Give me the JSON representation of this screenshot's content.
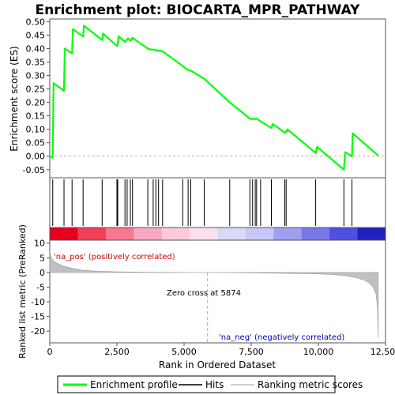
{
  "chart_data": {
    "type": "line",
    "title": "Enrichment plot: BIOCARTA_MPR_PATHWAY",
    "es_panel": {
      "ylabel": "Enrichment score (ES)",
      "ylim": [
        -0.08,
        0.51
      ],
      "yticks": [
        -0.05,
        0.0,
        0.05,
        0.1,
        0.15,
        0.2,
        0.25,
        0.3,
        0.35,
        0.4,
        0.45,
        0.5
      ],
      "ytick_labels": [
        "-0.05",
        "0.00",
        "0.05",
        "0.10",
        "0.15",
        "0.20",
        "0.25",
        "0.30",
        "0.35",
        "0.40",
        "0.45",
        "0.50"
      ],
      "series": [
        {
          "name": "Enrichment profile",
          "color": "#00ff00",
          "x": [
            0,
            110,
            140,
            530,
            560,
            830,
            860,
            1240,
            1270,
            1950,
            1980,
            2500,
            2530,
            2560,
            2800,
            2840,
            2880,
            2920,
            3000,
            3080,
            3150,
            3650,
            3700,
            3850,
            3950,
            4050,
            4100,
            4200,
            4950,
            5150,
            5250,
            5750,
            6700,
            7450,
            7550,
            7650,
            7700,
            7850,
            8250,
            8300,
            8750,
            8800,
            8850,
            9900,
            9950,
            10950,
            11000,
            11250,
            11280,
            12230
          ],
          "y": [
            0.0,
            -0.005,
            0.272,
            0.243,
            0.4,
            0.382,
            0.472,
            0.445,
            0.485,
            0.432,
            0.456,
            0.41,
            0.412,
            0.446,
            0.425,
            0.43,
            0.433,
            0.438,
            0.428,
            0.44,
            0.435,
            0.4,
            0.398,
            0.396,
            0.395,
            0.392,
            0.393,
            0.39,
            0.335,
            0.32,
            0.318,
            0.288,
            0.2,
            0.14,
            0.138,
            0.138,
            0.14,
            0.13,
            0.105,
            0.12,
            0.088,
            0.09,
            0.1,
            0.012,
            0.035,
            -0.05,
            0.015,
            0.0,
            0.085,
            0.002
          ]
        }
      ]
    },
    "hits": {
      "name": "Hits",
      "color": "#000000",
      "x": [
        110,
        530,
        830,
        1240,
        1950,
        2500,
        2530,
        2800,
        2880,
        3000,
        3080,
        3650,
        3850,
        3950,
        4050,
        4200,
        4950,
        5150,
        5250,
        5750,
        6700,
        7450,
        7550,
        7650,
        7700,
        7850,
        8250,
        8750,
        8800,
        9900,
        10950,
        11250
      ]
    },
    "heatmap": {
      "colors": [
        "#e8001e",
        "#f04058",
        "#f87890",
        "#f9a8c2",
        "#fbc8dc",
        "#fde0ee",
        "#d8d8f8",
        "#c8c8f8",
        "#a0a0f0",
        "#7878e8",
        "#5050e0",
        "#2020c0"
      ]
    },
    "rank_panel": {
      "ylabel": "Ranked list metric (PreRanked)",
      "ylim": [
        -24,
        11
      ],
      "yticks": [
        -20,
        -15,
        -10,
        -5,
        0,
        5,
        10
      ],
      "ytick_labels": [
        "-20",
        "-15",
        "-10",
        "-5",
        "0",
        "5",
        "10"
      ],
      "series": [
        {
          "name": "Ranking metric scores",
          "color": "#c0c0c0",
          "x": [
            0,
            60,
            150,
            300,
            500,
            800,
            1200,
            1800,
            2500,
            3500,
            4500,
            5874,
            7000,
            8000,
            9000,
            10000,
            10500,
            11000,
            11400,
            11700,
            11900,
            12050,
            12150,
            12200,
            12230
          ],
          "y": [
            7.2,
            5.0,
            3.8,
            3.0,
            2.2,
            1.5,
            0.8,
            0.4,
            0.2,
            0.1,
            0.05,
            0.0,
            -0.1,
            -0.2,
            -0.35,
            -0.5,
            -0.7,
            -1.1,
            -1.8,
            -2.6,
            -3.6,
            -5.2,
            -7.5,
            -12.0,
            -22.5
          ]
        }
      ],
      "annotations": {
        "positive": "'na_pos' (positively correlated)",
        "negative": "'na_neg' (negatively correlated)",
        "zero_cross": "Zero cross at 5874",
        "zero_cross_x": 5874
      }
    },
    "x_axis": {
      "xlabel": "Rank in Ordered Dataset",
      "xlim": [
        0,
        12500
      ],
      "xticks": [
        0,
        2500,
        5000,
        7500,
        10000,
        12500
      ],
      "xtick_labels": [
        "0",
        "2,500",
        "5,000",
        "7,500",
        "10,000",
        "12,500"
      ]
    },
    "legend": {
      "placement": "bottom",
      "items": [
        {
          "label": "Enrichment profile",
          "color": "#00ff00"
        },
        {
          "label": "Hits",
          "color": "#000000"
        },
        {
          "label": "Ranking metric scores",
          "color": "#c0c0c0"
        }
      ]
    }
  }
}
